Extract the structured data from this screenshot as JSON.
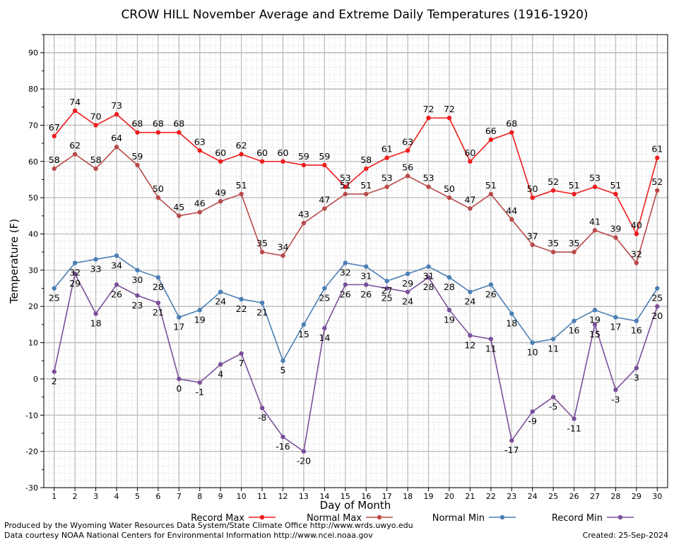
{
  "chart_data": {
    "type": "line",
    "title": "CROW HILL November Average and Extreme Daily Temperatures (1916-1920)",
    "xlabel": "Day of Month",
    "ylabel": "Temperature (F)",
    "x": [
      1,
      2,
      3,
      4,
      5,
      6,
      7,
      8,
      9,
      10,
      11,
      12,
      13,
      14,
      15,
      16,
      17,
      18,
      19,
      20,
      21,
      22,
      23,
      24,
      25,
      26,
      27,
      28,
      29,
      30
    ],
    "xlim": [
      0.5,
      30.5
    ],
    "ylim": [
      -30,
      95
    ],
    "yticks": [
      -30,
      -20,
      -10,
      0,
      10,
      20,
      30,
      40,
      50,
      60,
      70,
      80,
      90
    ],
    "grid": true,
    "legend_position": "bottom",
    "series": [
      {
        "name": "Record Max",
        "color": "#ee1c1c",
        "label_pos": "above",
        "values": [
          67,
          74,
          70,
          73,
          68,
          68,
          68,
          63,
          60,
          62,
          60,
          60,
          59,
          59,
          53,
          58,
          61,
          63,
          72,
          72,
          60,
          66,
          68,
          50,
          52,
          51,
          53,
          51,
          40,
          61
        ]
      },
      {
        "name": "Normal Max",
        "color": "#b94a4a",
        "label_pos": "above",
        "values": [
          58,
          62,
          58,
          64,
          59,
          50,
          45,
          46,
          49,
          51,
          35,
          34,
          43,
          47,
          51,
          51,
          53,
          56,
          53,
          50,
          47,
          51,
          44,
          37,
          35,
          35,
          41,
          39,
          32,
          52
        ]
      },
      {
        "name": "Normal Min",
        "color": "#4a7fb5",
        "label_pos": "below",
        "values": [
          25,
          32,
          33,
          34,
          30,
          28,
          17,
          19,
          24,
          22,
          21,
          5,
          15,
          25,
          32,
          31,
          27,
          29,
          31,
          28,
          24,
          26,
          18,
          10,
          11,
          16,
          19,
          17,
          16,
          25
        ]
      },
      {
        "name": "Record Min",
        "color": "#7a4f9a",
        "label_pos": "below",
        "values": [
          2,
          29,
          18,
          26,
          23,
          21,
          0,
          -1,
          4,
          7,
          -8,
          -16,
          -20,
          14,
          26,
          26,
          25,
          24,
          28,
          19,
          12,
          11,
          -17,
          -9,
          -5,
          -11,
          15,
          -3,
          3,
          20
        ]
      }
    ]
  },
  "footer": {
    "line1": "Produced by the Wyoming Water Resources Data System/State Climate Office http://www.wrds.uwyo.edu",
    "line2": "Data courtesy NOAA National Centers for Environmental Information http://www.ncei.noaa.gov",
    "created": "Created:  25-Sep-2024"
  }
}
